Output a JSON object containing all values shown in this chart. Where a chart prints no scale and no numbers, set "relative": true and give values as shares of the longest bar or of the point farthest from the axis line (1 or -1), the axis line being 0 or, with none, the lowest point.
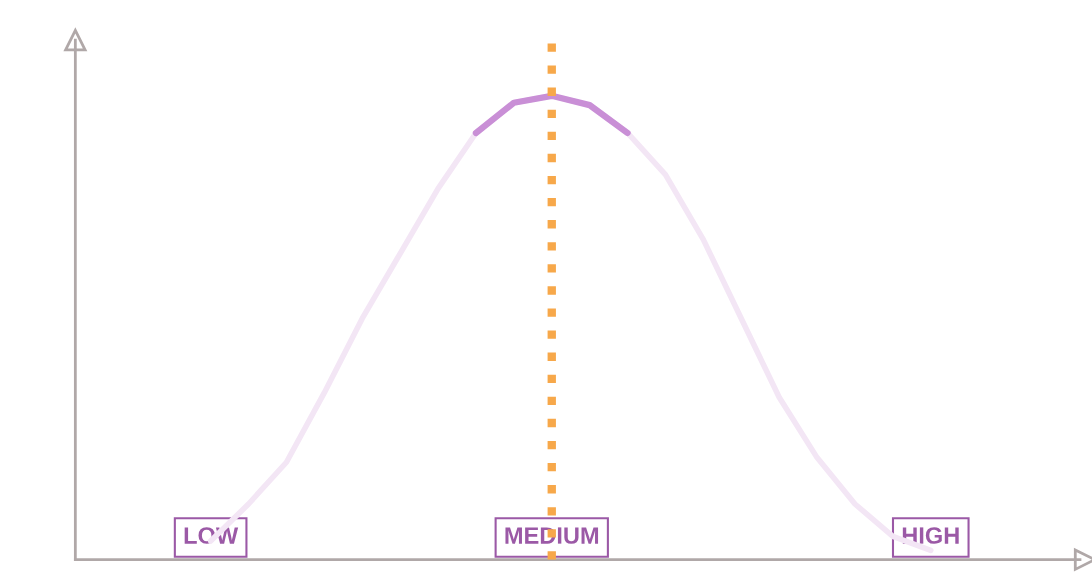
{
  "chart_data": {
    "type": "line",
    "relative": true,
    "categories": [
      "LOW",
      null,
      null,
      null,
      null,
      null,
      null,
      null,
      null,
      "MEDIUM",
      null,
      null,
      null,
      null,
      null,
      null,
      null,
      null,
      null,
      "HIGH"
    ],
    "series": [
      {
        "color": "#f3e6f5",
        "values": [
          0.04,
          0.12,
          0.21,
          0.36,
          0.52,
          0.66,
          0.8,
          0.92,
          0.985,
          1.0,
          0.98,
          0.92,
          0.83,
          0.69,
          0.52,
          0.35,
          0.22,
          0.12,
          0.05,
          0.02
        ]
      },
      {
        "color": "#c98fd6",
        "values": [
          null,
          null,
          null,
          null,
          null,
          null,
          null,
          0.92,
          0.985,
          1.0,
          0.98,
          0.92,
          null,
          null,
          null,
          null,
          null,
          null,
          null,
          null
        ]
      }
    ],
    "ref_lines": [
      {
        "axis": "x",
        "value": "MEDIUM",
        "color": "#f7a84a",
        "line_style": "dotted"
      }
    ],
    "grid": false,
    "legend": false,
    "marker": "none",
    "line_style": "solid"
  }
}
